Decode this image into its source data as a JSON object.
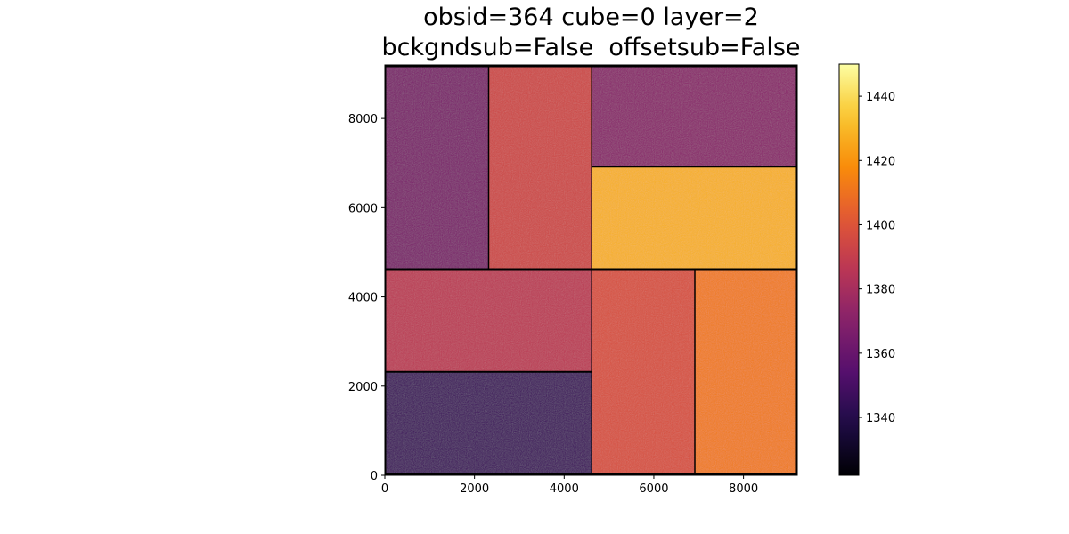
{
  "chart_data": [
    {
      "type": "heatmap",
      "title_lines": [
        "obsid=364 cube=0 layer=2",
        "bckgndsub=False  offsetsub=False"
      ],
      "xlabel": "",
      "ylabel": "",
      "xlim": [
        0,
        9200
      ],
      "ylim": [
        0,
        9200
      ],
      "x_ticks": [
        0,
        2000,
        4000,
        6000,
        8000
      ],
      "y_ticks": [
        0,
        2000,
        4000,
        6000,
        8000
      ],
      "colormap": "inferno",
      "grid": false,
      "regions": [
        {
          "x": [
            0,
            2300
          ],
          "y": [
            4600,
            9150
          ],
          "value": 1366
        },
        {
          "x": [
            2300,
            4600
          ],
          "y": [
            4600,
            9150
          ],
          "value": 1394
        },
        {
          "x": [
            4600,
            9150
          ],
          "y": [
            6900,
            9150
          ],
          "value": 1371
        },
        {
          "x": [
            4600,
            9150
          ],
          "y": [
            4600,
            6900
          ],
          "value": 1428
        },
        {
          "x": [
            0,
            4600
          ],
          "y": [
            2300,
            4600
          ],
          "value": 1387
        },
        {
          "x": [
            0,
            4600
          ],
          "y": [
            0,
            2300
          ],
          "value": 1347
        },
        {
          "x": [
            4600,
            6900
          ],
          "y": [
            0,
            4600
          ],
          "value": 1398
        },
        {
          "x": [
            6900,
            9150
          ],
          "y": [
            0,
            4600
          ],
          "value": 1413
        }
      ]
    },
    {
      "type": "colorbar",
      "range": [
        1322,
        1450
      ],
      "ticks": [
        1340,
        1360,
        1380,
        1400,
        1420,
        1440
      ],
      "colormap": "inferno"
    }
  ]
}
